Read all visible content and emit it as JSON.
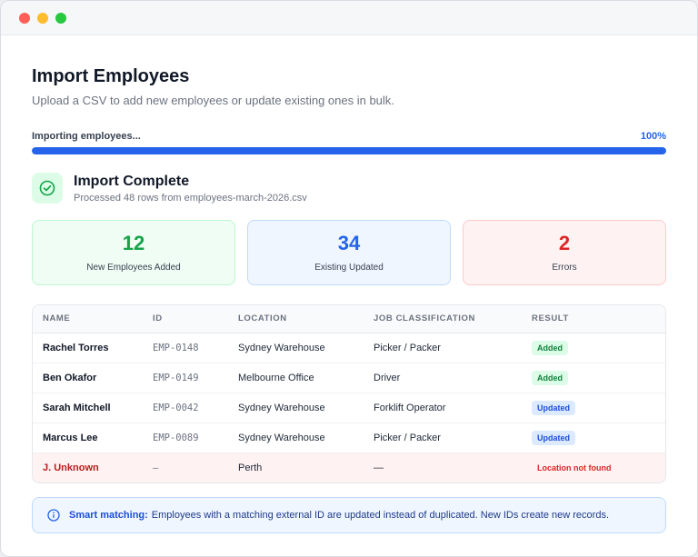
{
  "window": {
    "controls": {
      "close_color": "#ff5f57",
      "minimize_color": "#febc2e",
      "zoom_color": "#28c840"
    }
  },
  "header": {
    "title": "Import Employees",
    "subtitle": "Upload a CSV to add new employees or update existing ones in bulk."
  },
  "progress": {
    "label": "Importing employees...",
    "value_text": "100%",
    "fraction": 1.0
  },
  "status": {
    "icon": "check-circle-icon",
    "title": "Import Complete",
    "subtitle": "Processed 48 rows from employees-march-2026.csv"
  },
  "stats": [
    {
      "value": "12",
      "label": "New Employees Added",
      "color": "#16a34a"
    },
    {
      "value": "34",
      "label": "Existing Updated",
      "color": "#2563eb"
    },
    {
      "value": "2",
      "label": "Errors",
      "color": "#dc2626"
    }
  ],
  "table": {
    "columns": [
      "NAME",
      "ID",
      "LOCATION",
      "JOB CLASSIFICATION",
      "RESULT"
    ],
    "rows": [
      {
        "name": "Rachel Torres",
        "id": "EMP-0148",
        "location": "Sydney Warehouse",
        "job": "Picker / Packer",
        "result": "Added"
      },
      {
        "name": "Ben Okafor",
        "id": "EMP-0149",
        "location": "Melbourne Office",
        "job": "Driver",
        "result": "Added"
      },
      {
        "name": "Sarah Mitchell",
        "id": "EMP-0042",
        "location": "Sydney Warehouse",
        "job": "Forklift Operator",
        "result": "Updated"
      },
      {
        "name": "Marcus Lee",
        "id": "EMP-0089",
        "location": "Sydney Warehouse",
        "job": "Picker / Packer",
        "result": "Updated"
      },
      {
        "name": "J. Unknown",
        "id": "—",
        "location": "Perth",
        "job": "—",
        "result": "Location not found"
      }
    ]
  },
  "notice": {
    "icon": "info-icon",
    "strong": "Smart matching:",
    "text": "Employees with a matching external ID are updated instead of duplicated. New IDs create new records."
  }
}
